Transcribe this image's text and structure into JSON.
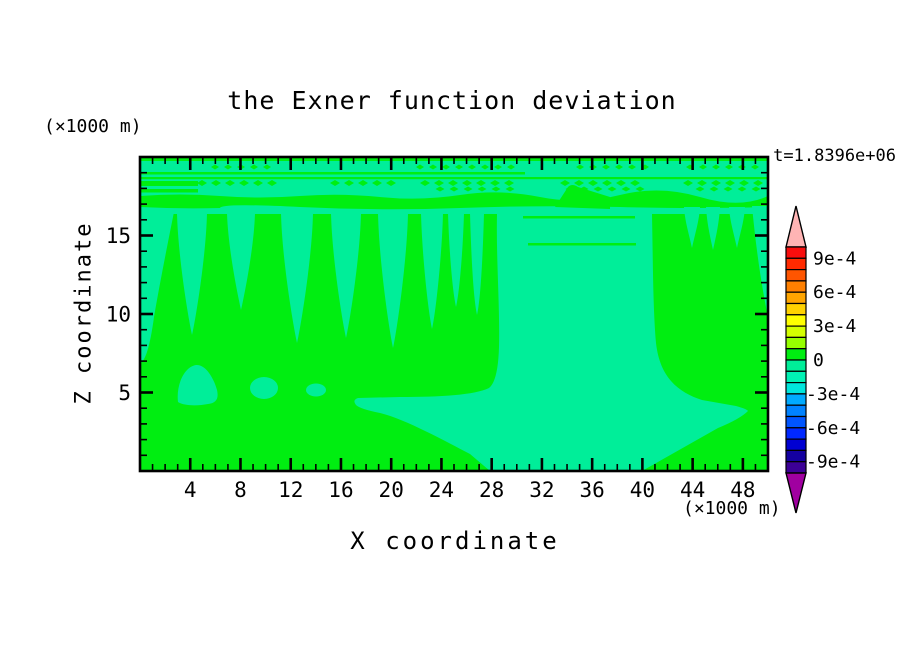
{
  "title": "the Exner function deviation",
  "time_label": "t=1.8396e+06",
  "axes": {
    "x_label": "X coordinate",
    "y_label": "Z coordinate",
    "x_unit_label": "(×1000 m)",
    "y_unit_label": "(×1000 m)",
    "x_tick_labels": [
      "4",
      "8",
      "12",
      "16",
      "20",
      "24",
      "28",
      "32",
      "36",
      "40",
      "44",
      "48"
    ],
    "y_tick_labels": [
      "5",
      "10",
      "15"
    ],
    "x_range": [
      0,
      50
    ],
    "y_range": [
      0,
      20
    ],
    "x_major_step": 4,
    "x_minor_step": 1,
    "y_major_step": 5,
    "y_minor_step": 1
  },
  "colorbar": {
    "tick_labels": [
      "9e-4",
      "6e-4",
      "3e-4",
      "0",
      "-3e-4",
      "-6e-4",
      "-9e-4"
    ],
    "value_top": "1e-3",
    "value_bottom": "-1e-3",
    "interval": "1e-4",
    "segment_colors_top_to_bottom": [
      "#F80D0D",
      "#FF2A00",
      "#FF5500",
      "#FF8000",
      "#FFA500",
      "#FFD200",
      "#FFFF00",
      "#D4FF00",
      "#96FF00",
      "#00EE11",
      "#00EE99",
      "#00F2B4",
      "#00E6DC",
      "#00AAFF",
      "#0082FF",
      "#0055FF",
      "#0028FF",
      "#0000D2",
      "#1400A0",
      "#3C0096"
    ],
    "top_arrow_color": "#FFB4B4",
    "bottom_arrow_color": "#A000A0"
  },
  "chart_data": {
    "type": "heatmap",
    "subtype": "filled-contour",
    "title": "the Exner function deviation",
    "xlabel": "X coordinate",
    "ylabel": "Z coordinate",
    "x_unit": "×1000 m",
    "y_unit": "×1000 m",
    "time_annotation": "t=1.8396e+06",
    "xlim": [
      0,
      50
    ],
    "ylim": [
      0,
      20
    ],
    "grid": false,
    "legend_position": "right-colorbar",
    "levels": [
      -0.001,
      -0.0009,
      -0.0008,
      -0.0007,
      -0.0006,
      -0.0005,
      -0.0004,
      -0.0003,
      -0.0002,
      -0.0001,
      0,
      0.0001,
      0.0002,
      0.0003,
      0.0004,
      0.0005,
      0.0006,
      0.0007,
      0.0008,
      0.0009,
      0.001
    ],
    "visible_value_range": [
      -0.0001,
      0.0001
    ],
    "bands_visible": [
      {
        "value_band": "0 to +1e-4",
        "color": "#00EE11",
        "description": "bright-green background covering most of the domain"
      },
      {
        "value_band": "-1e-4 to 0",
        "color": "#00EE99",
        "description": "spring-green slightly-negative regions"
      }
    ],
    "negative_band_regions": [
      {
        "name": "upper striped/dithered layer",
        "x": [
          0,
          50
        ],
        "z": [
          17,
          20
        ]
      },
      {
        "name": "descending plumes from z≈16.3",
        "x_centers": [
          1.0,
          4.1,
          8.0,
          12.5,
          16.4,
          20.1,
          23.2,
          25.9,
          28.0
        ],
        "z_tips": [
          6.9,
          8.7,
          10.3,
          8.2,
          8.5,
          7.8,
          9.0,
          10.2,
          9.8
        ]
      },
      {
        "name": "right-side plumes from z≈17",
        "x_centers": [
          43.9,
          45.6,
          47.5,
          49.0
        ],
        "z_tips": [
          14.2,
          14.1,
          14.2,
          9.9
        ]
      },
      {
        "name": "wide negative column",
        "x": [
          29,
          41
        ],
        "z_top": 16.3,
        "z_bottom": 0
      },
      {
        "name": "bottom anvil spreading left and right wings",
        "x": [
          17.1,
          48.4
        ],
        "z": [
          0,
          5.0
        ]
      },
      {
        "name": "low-level blobs near z≈5",
        "x_centers": [
          4.5,
          9.9,
          14.0
        ],
        "z_centers": [
          5.5,
          5.3,
          5.1
        ]
      }
    ]
  }
}
